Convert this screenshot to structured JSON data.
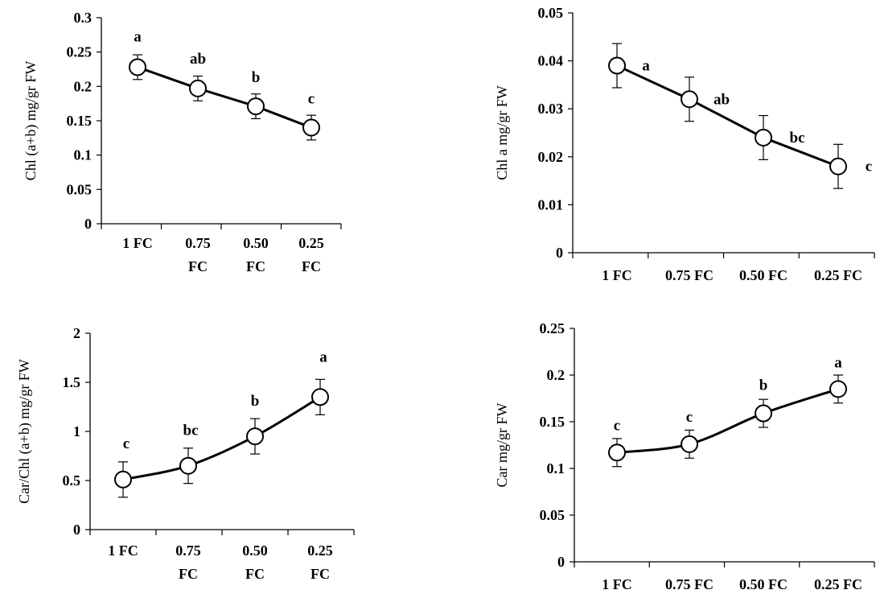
{
  "chart_data": [
    {
      "type": "line",
      "ylabel": "Chl (a+b) mg/gr FW",
      "ylim": [
        0,
        0.3
      ],
      "yticks": [
        "0",
        "0.05",
        "0.1",
        "0.15",
        "0.2",
        "0.25",
        "0.3"
      ],
      "categories": [
        [
          "1 FC"
        ],
        [
          "0.75",
          "FC"
        ],
        [
          "0.50",
          "FC"
        ],
        [
          "0.25",
          "FC"
        ]
      ],
      "values": [
        0.228,
        0.197,
        0.171,
        0.14
      ],
      "errors": [
        0.018,
        0.018,
        0.018,
        0.018
      ],
      "letters": [
        "a",
        "ab",
        "b",
        "c"
      ]
    },
    {
      "type": "line",
      "ylabel": "Chl a mg/gr FW",
      "ylim": [
        0,
        0.05
      ],
      "yticks": [
        "0",
        "0.01",
        "0.02",
        "0.03",
        "0.04",
        "0.05"
      ],
      "categories": [
        [
          "1 FC"
        ],
        [
          "0.75 FC"
        ],
        [
          "0.50 FC"
        ],
        [
          "0.25 FC"
        ]
      ],
      "values": [
        0.039,
        0.032,
        0.024,
        0.018
      ],
      "errors": [
        0.0046,
        0.0046,
        0.0046,
        0.0046
      ],
      "letters": [
        "a",
        "ab",
        "bc",
        "c"
      ]
    },
    {
      "type": "line",
      "ylabel": "Car/Chl (a+b) mg/gr FW",
      "ylim": [
        0,
        2
      ],
      "yticks": [
        "0",
        "0.5",
        "1",
        "1.5",
        "2"
      ],
      "categories": [
        [
          "1 FC"
        ],
        [
          "0.75",
          "FC"
        ],
        [
          "0.50",
          "FC"
        ],
        [
          "0.25",
          "FC"
        ]
      ],
      "values": [
        0.51,
        0.65,
        0.95,
        1.35
      ],
      "errors": [
        0.18,
        0.18,
        0.18,
        0.18
      ],
      "letters": [
        "c",
        "bc",
        "b",
        "a"
      ]
    },
    {
      "type": "line",
      "ylabel": "Car mg/gr FW",
      "ylim": [
        0,
        0.25
      ],
      "yticks": [
        "0",
        "0.05",
        "0.1",
        "0.15",
        "0.2",
        "0.25"
      ],
      "categories": [
        [
          "1 FC"
        ],
        [
          "0.75 FC"
        ],
        [
          "0.50 FC"
        ],
        [
          "0.25 FC"
        ]
      ],
      "values": [
        0.117,
        0.126,
        0.159,
        0.185
      ],
      "errors": [
        0.015,
        0.015,
        0.015,
        0.015
      ],
      "letters": [
        "c",
        "c",
        "b",
        "a"
      ]
    }
  ]
}
